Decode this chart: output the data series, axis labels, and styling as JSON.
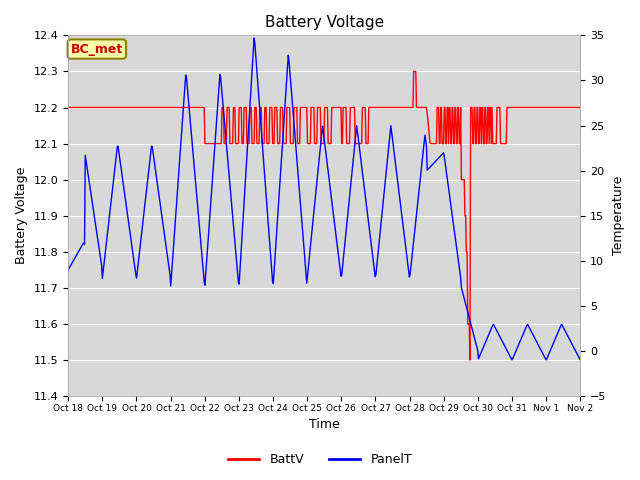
{
  "title": "Battery Voltage",
  "xlabel": "Time",
  "ylabel_left": "Battery Voltage",
  "ylabel_right": "Temperature",
  "ylim_left": [
    11.4,
    12.4
  ],
  "ylim_right": [
    -5,
    35
  ],
  "legend_label_box": "BC_met",
  "xtick_labels": [
    "Oct 18",
    "Oct 19",
    "Oct 20",
    "Oct 21",
    "Oct 22",
    "Oct 23",
    "Oct 24",
    "Oct 25",
    "Oct 26",
    "Oct 27",
    "Oct 28",
    "Oct 29",
    "Oct 30",
    "Oct 31",
    "Nov 1",
    "Nov 2"
  ],
  "battv_color": "#ff0000",
  "panelt_color": "#0000ff",
  "bg_color": "#d8d8d8",
  "fig_color": "#ffffff",
  "grid_color": "#ffffff",
  "battv_lw": 1.0,
  "panelt_lw": 1.0,
  "title_fontsize": 11,
  "label_fontsize": 9,
  "tick_fontsize": 8
}
